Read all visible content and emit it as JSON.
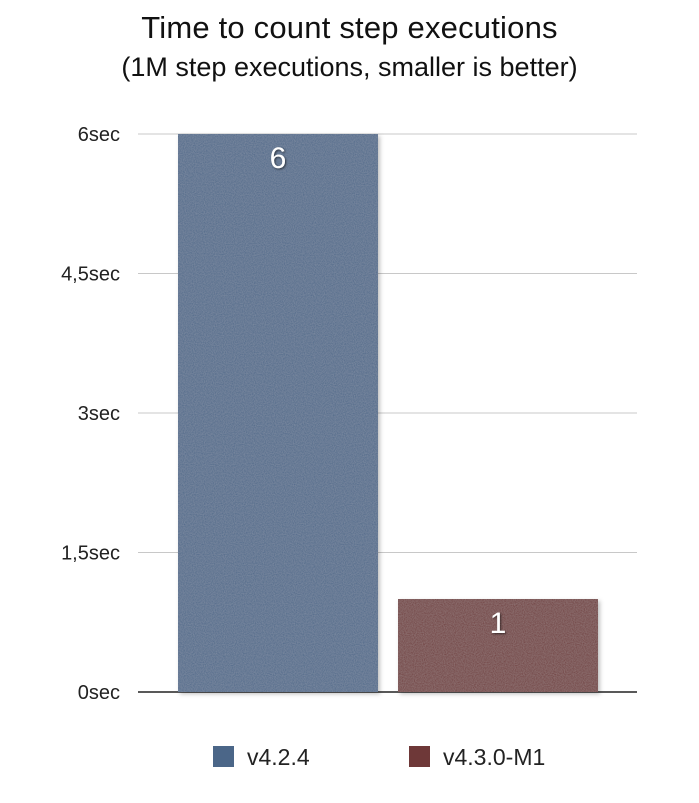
{
  "chart_data": {
    "type": "bar",
    "title": "Time to count step executions",
    "subtitle": "(1M step executions, smaller is better)",
    "categories": [
      "v4.2.4",
      "v4.3.0-M1"
    ],
    "series": [
      {
        "name": "v4.2.4",
        "values": [
          6,
          null
        ],
        "color": "#4b6688"
      },
      {
        "name": "v4.3.0-M1",
        "values": [
          null,
          1
        ],
        "color": "#6e3838"
      }
    ],
    "data_labels": [
      "6",
      "1"
    ],
    "yticks": [
      0,
      1.5,
      3,
      4.5,
      6
    ],
    "ytick_labels": [
      "0sec",
      "1,5sec",
      "3sec",
      "4,5sec",
      "6sec"
    ],
    "ylim": [
      0,
      6
    ],
    "xlabel": "",
    "ylabel": "",
    "grid": true,
    "legend_position": "bottom"
  }
}
